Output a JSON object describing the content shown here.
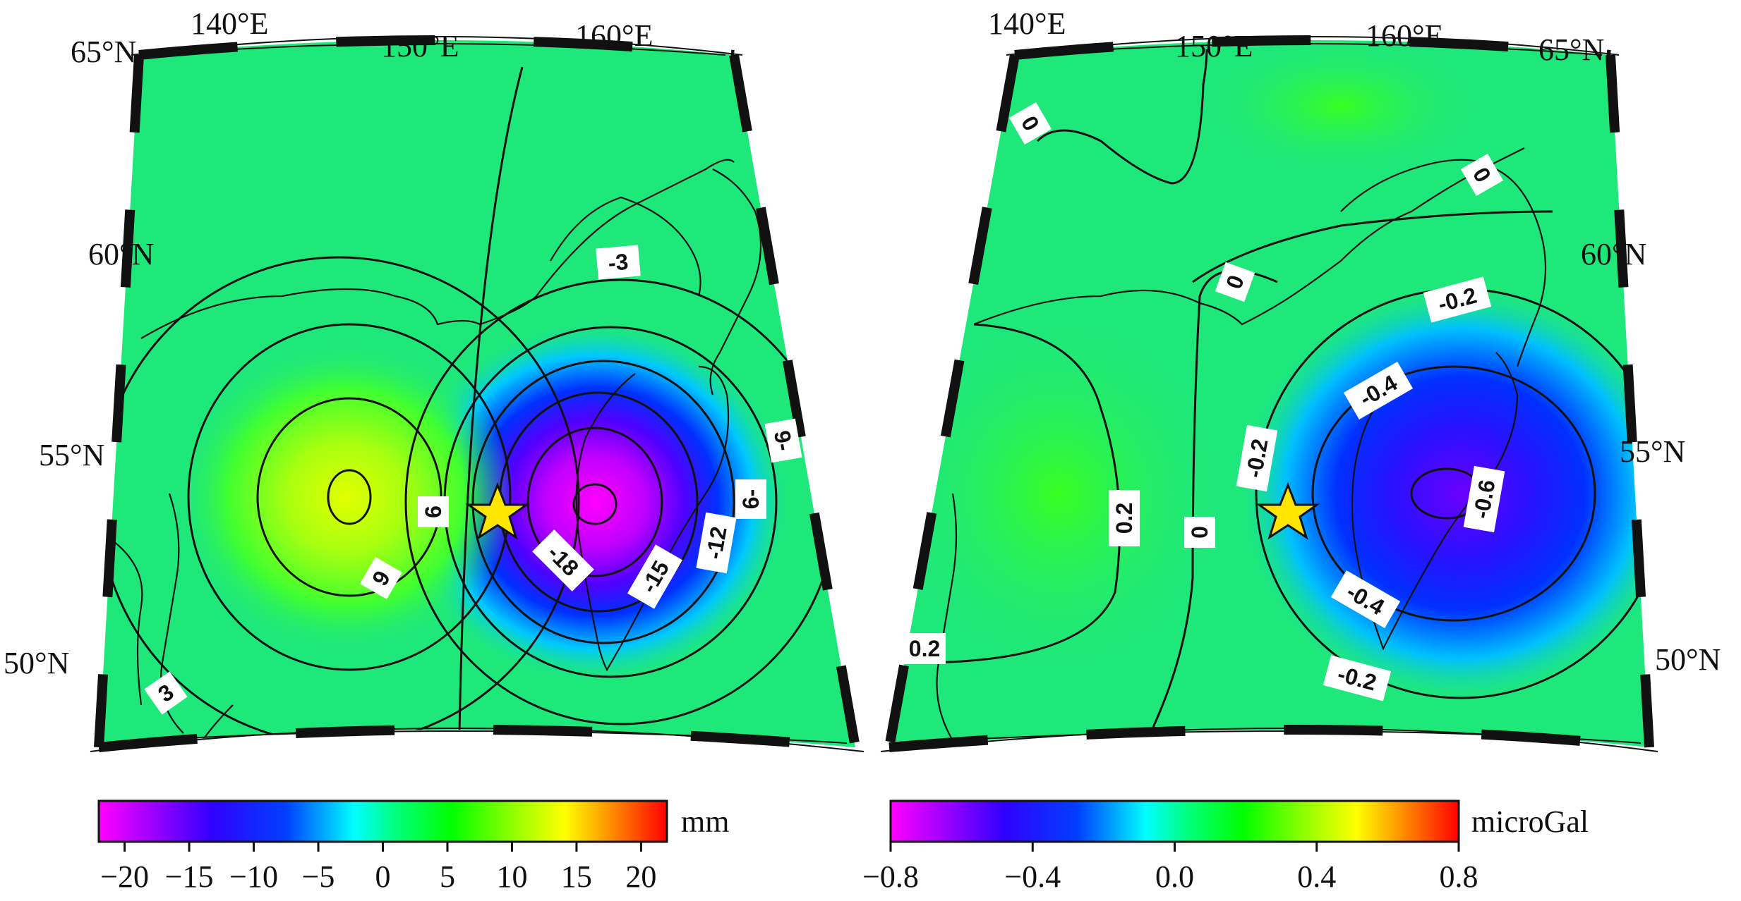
{
  "panels": [
    {
      "id": "displacement",
      "lon_labels": [
        "140°E",
        "150°E",
        "160°E"
      ],
      "lat_labels": [
        "65°N",
        "60°N",
        "55°N",
        "50°N"
      ],
      "contour_labels": [
        "-3",
        "6",
        "9",
        "-18",
        "-15",
        "-12",
        "6-",
        "9-",
        "3"
      ],
      "colorbar": {
        "unit": "mm",
        "ticks": [
          "−20",
          "−15",
          "−10",
          "−5",
          "0",
          "5",
          "10",
          "15",
          "20"
        ],
        "range": [
          -22,
          22
        ]
      }
    },
    {
      "id": "gravity",
      "lon_labels": [
        "140°E",
        "150°E",
        "160°E"
      ],
      "lat_labels": [
        "65°N",
        "60°N",
        "55°N",
        "50°N"
      ],
      "contour_labels": [
        "0",
        "0",
        "0",
        "0.2",
        "0",
        "-0.2",
        "-0.2",
        "-0.4",
        "-0.6",
        "-0.4",
        "-0.2",
        "0.2"
      ],
      "colorbar": {
        "unit": "microGal",
        "ticks": [
          "−0.8",
          "−0.4",
          "0.0",
          "0.4",
          "0.8"
        ],
        "range": [
          -0.8,
          0.8
        ]
      }
    }
  ],
  "colors": {
    "scale": [
      "#ff00ff",
      "#0000ff",
      "#00ffff",
      "#00ff00",
      "#ffff00",
      "#ff0000"
    ],
    "star": "#ffe600",
    "background_field": "#1fe87a"
  },
  "icons": [
    "epicenter-star-icon",
    "coastline",
    "frame-border"
  ]
}
